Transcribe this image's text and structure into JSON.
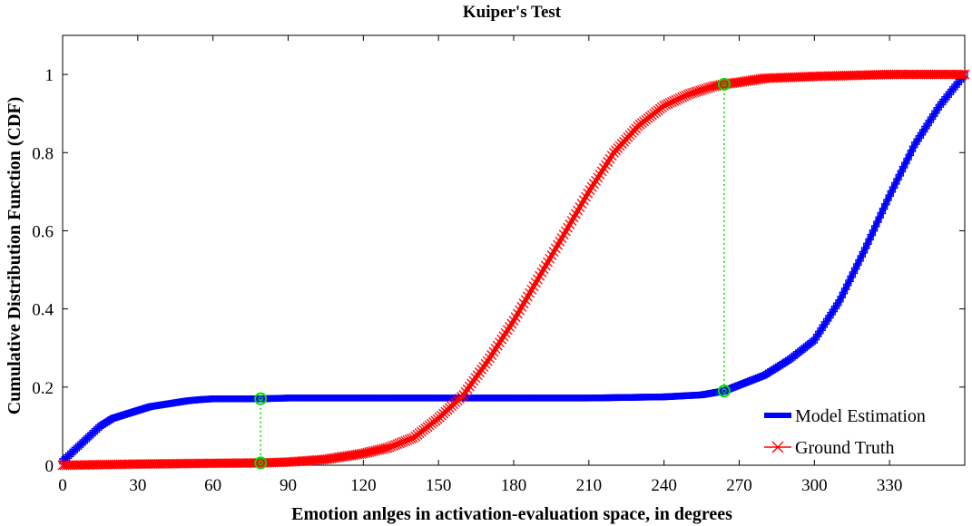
{
  "chart_data": {
    "type": "line",
    "title": "Kuiper's Test",
    "xlabel": "Emotion anlges in activation-evaluation space, in degrees",
    "ylabel": "Cumulative Distribution Function (CDF)",
    "xlim": [
      0,
      360
    ],
    "ylim": [
      0,
      1.1
    ],
    "xticks": [
      0,
      30,
      60,
      90,
      120,
      150,
      180,
      210,
      240,
      270,
      300,
      330
    ],
    "xtick_labels": [
      "0",
      "30",
      "60",
      "90",
      "120",
      "150",
      "180",
      "210",
      "240",
      "270",
      "300",
      "330"
    ],
    "yticks": [
      0,
      0.2,
      0.4,
      0.6,
      0.8,
      1
    ],
    "ytick_labels": [
      "0",
      "0.2",
      "0.4",
      "0.6",
      "0.8",
      "1"
    ],
    "grid": false,
    "legend_position": "bottom-right",
    "series": [
      {
        "name": "Model Estimation",
        "color": "#0000ff",
        "marker": "square",
        "x": [
          0,
          5,
          10,
          15,
          20,
          25,
          30,
          35,
          40,
          45,
          50,
          55,
          60,
          70,
          79,
          90,
          120,
          150,
          180,
          210,
          240,
          255,
          264,
          270,
          280,
          290,
          300,
          310,
          320,
          330,
          340,
          350,
          360
        ],
        "y": [
          0.01,
          0.04,
          0.07,
          0.1,
          0.12,
          0.13,
          0.14,
          0.15,
          0.155,
          0.16,
          0.165,
          0.168,
          0.17,
          0.17,
          0.17,
          0.172,
          0.172,
          0.172,
          0.172,
          0.172,
          0.175,
          0.18,
          0.19,
          0.205,
          0.23,
          0.27,
          0.32,
          0.42,
          0.55,
          0.69,
          0.82,
          0.92,
          1.0
        ]
      },
      {
        "name": "Ground Truth",
        "color": "#ff0000",
        "marker": "x",
        "x": [
          0,
          30,
          60,
          79,
          90,
          105,
          120,
          130,
          140,
          150,
          160,
          170,
          180,
          190,
          200,
          210,
          220,
          230,
          240,
          250,
          260,
          264,
          270,
          280,
          300,
          330,
          360
        ],
        "y": [
          0,
          0.003,
          0.005,
          0.006,
          0.008,
          0.015,
          0.03,
          0.045,
          0.07,
          0.12,
          0.18,
          0.27,
          0.37,
          0.48,
          0.59,
          0.7,
          0.8,
          0.87,
          0.92,
          0.95,
          0.97,
          0.975,
          0.98,
          0.99,
          0.995,
          1.0,
          1.0
        ]
      }
    ],
    "annotations": [
      {
        "type": "gap",
        "x": 79,
        "y_low": 0.006,
        "y_high": 0.17,
        "color": "#00dd00"
      },
      {
        "type": "gap",
        "x": 264,
        "y_low": 0.19,
        "y_high": 0.975,
        "color": "#00dd00"
      }
    ]
  }
}
